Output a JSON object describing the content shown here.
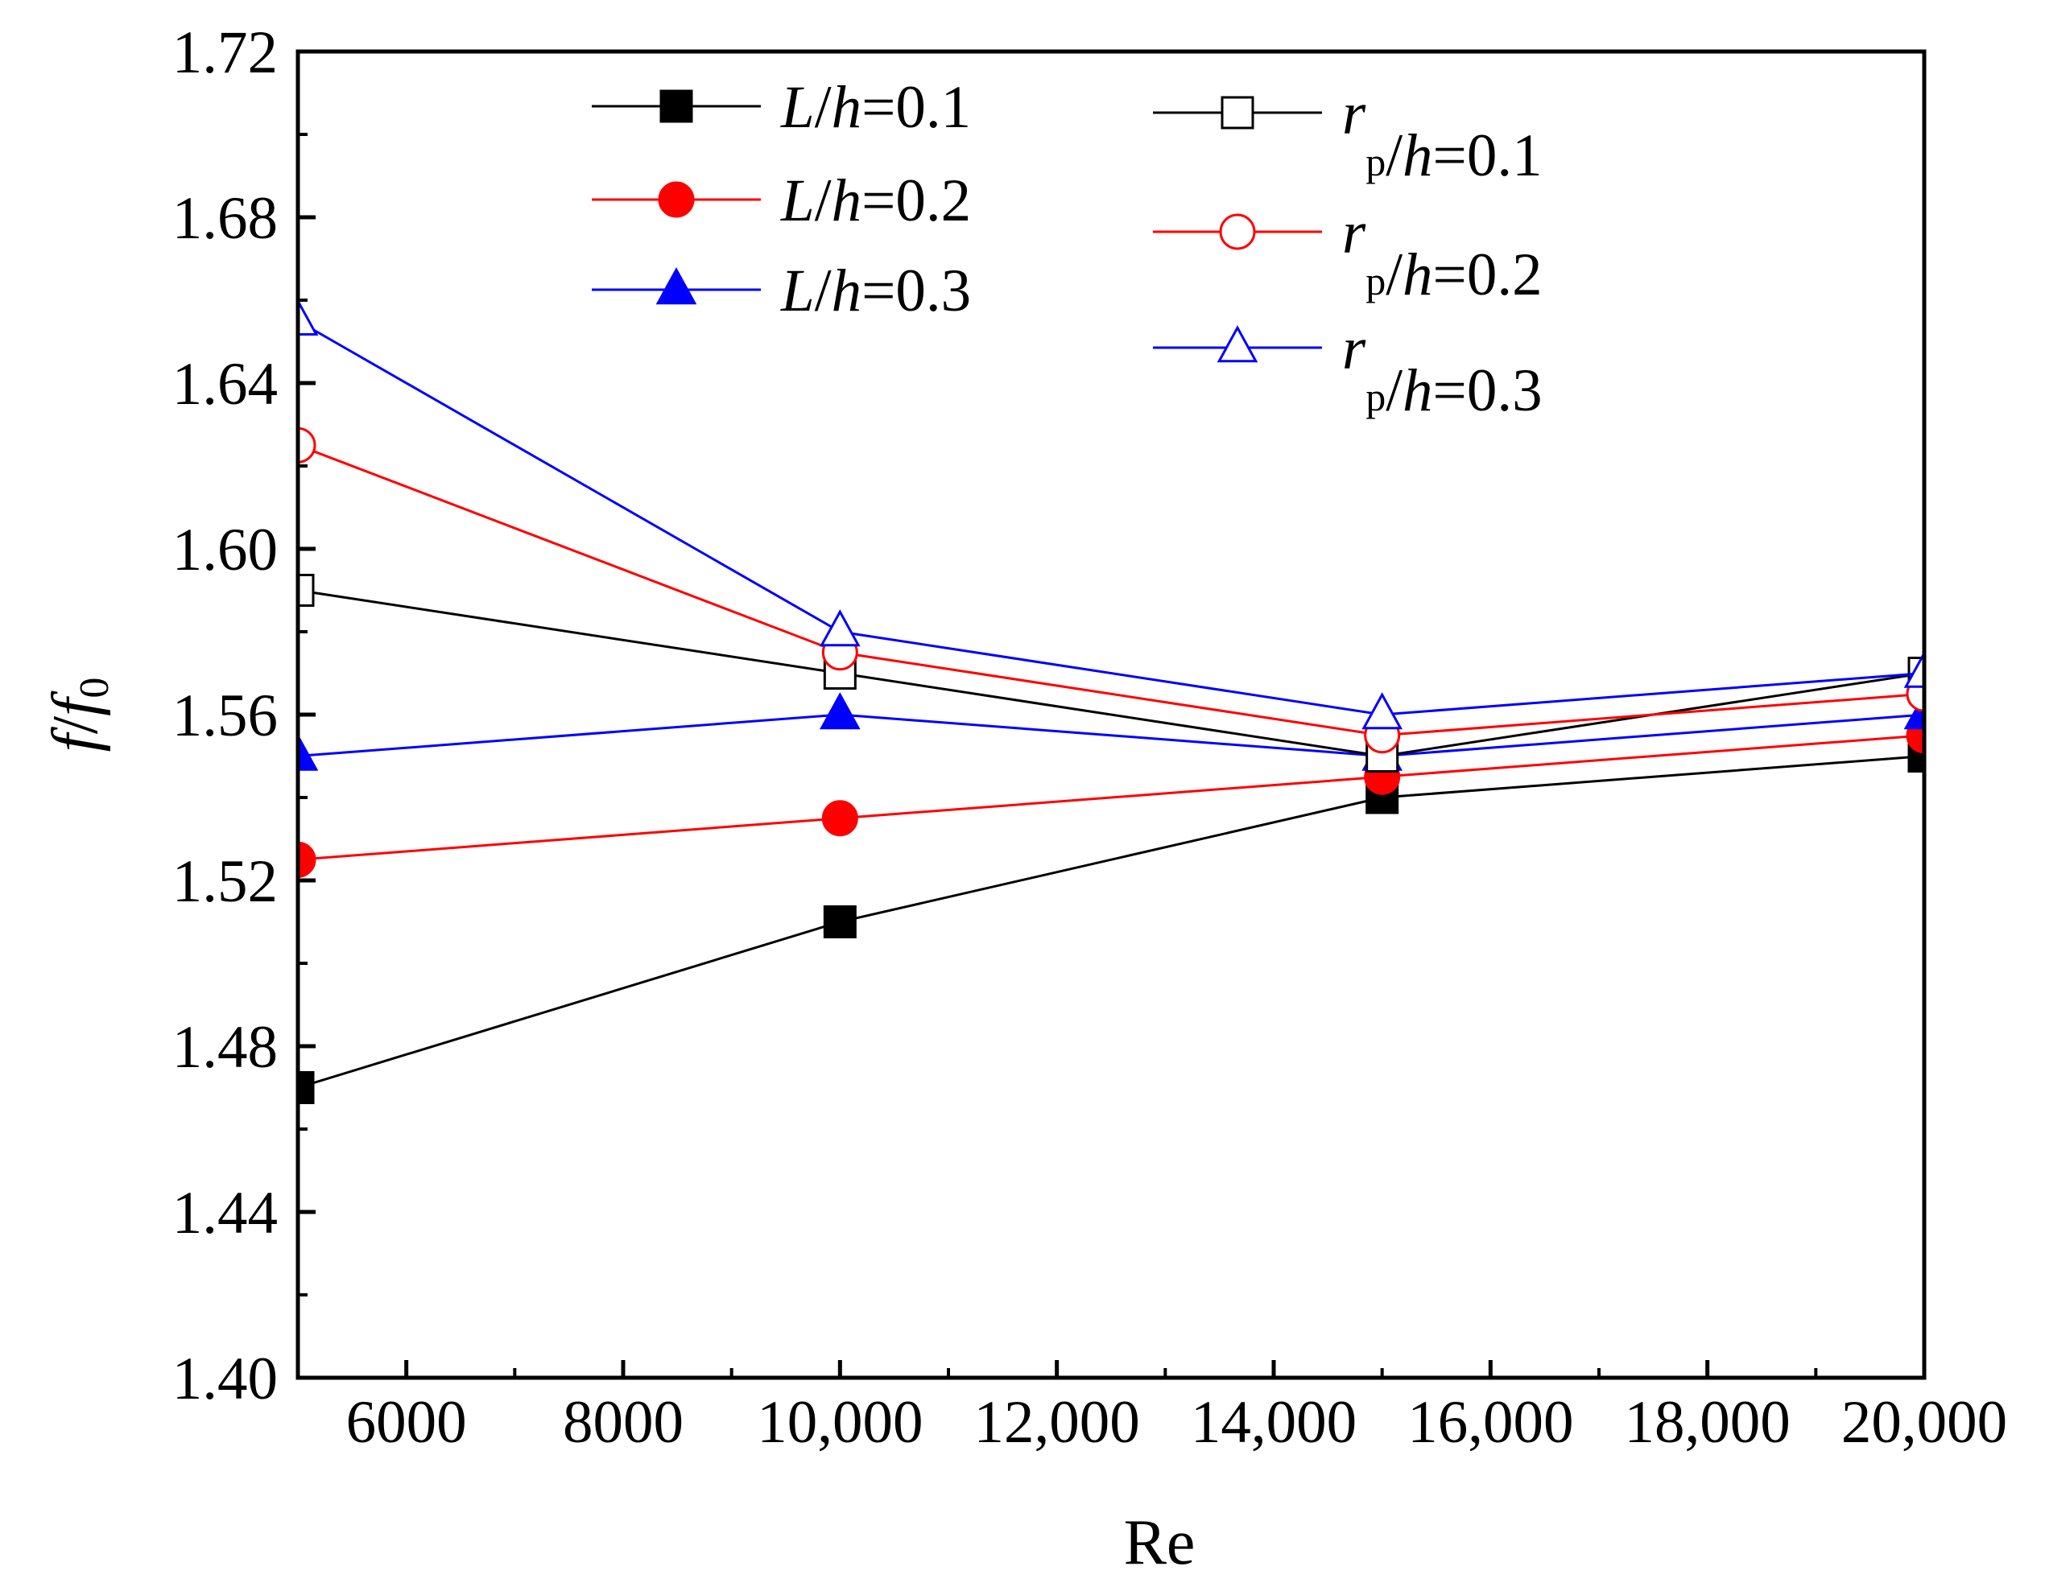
{
  "chart_data": {
    "type": "line",
    "title": "",
    "xlabel": "Re",
    "ylabel": {
      "main": "f",
      "slash": "/",
      "denom": "f",
      "sub": "0"
    },
    "xlim": [
      5000,
      20000
    ],
    "ylim": [
      1.4,
      1.72
    ],
    "x_ticks": [
      6000,
      8000,
      10000,
      12000,
      14000,
      16000,
      18000,
      20000
    ],
    "x_tick_labels": [
      "6000",
      "8000",
      "10,000",
      "12,000",
      "14,000",
      "16,000",
      "18,000",
      "20,000"
    ],
    "y_ticks": [
      1.4,
      1.44,
      1.48,
      1.52,
      1.56,
      1.6,
      1.64,
      1.68,
      1.72
    ],
    "y_tick_labels": [
      "1.40",
      "1.44",
      "1.48",
      "1.52",
      "1.56",
      "1.60",
      "1.64",
      "1.68",
      "1.72"
    ],
    "x": [
      5000,
      10000,
      15000,
      20000
    ],
    "legend_position": "top",
    "series": [
      {
        "name": "L/h=0.1",
        "var": "L",
        "sub": "",
        "suffix": "/h=0.1",
        "color": "#000000",
        "marker": "square",
        "filled": true,
        "values": [
          1.47,
          1.51,
          1.54,
          1.55
        ]
      },
      {
        "name": "L/h=0.2",
        "var": "L",
        "sub": "",
        "suffix": "/h=0.2",
        "color": "#ff0000",
        "marker": "circle",
        "filled": true,
        "values": [
          1.525,
          1.535,
          1.545,
          1.555
        ]
      },
      {
        "name": "L/h=0.3",
        "var": "L",
        "sub": "",
        "suffix": "/h=0.3",
        "color": "#0000ff",
        "marker": "triangle",
        "filled": true,
        "values": [
          1.55,
          1.56,
          1.55,
          1.56
        ]
      },
      {
        "name": "rp/h=0.1",
        "var": "r",
        "sub": "p",
        "suffix": "/h=0.1",
        "color": "#000000",
        "marker": "square",
        "filled": false,
        "values": [
          1.59,
          1.57,
          1.55,
          1.57
        ]
      },
      {
        "name": "rp/h=0.2",
        "var": "r",
        "sub": "p",
        "suffix": "/h=0.2",
        "color": "#ff0000",
        "marker": "circle",
        "filled": false,
        "values": [
          1.625,
          1.575,
          1.555,
          1.565
        ]
      },
      {
        "name": "rp/h=0.3",
        "var": "r",
        "sub": "p",
        "suffix": "/h=0.3",
        "color": "#0000ff",
        "marker": "triangle",
        "filled": false,
        "values": [
          1.655,
          1.58,
          1.56,
          1.57
        ]
      }
    ]
  }
}
